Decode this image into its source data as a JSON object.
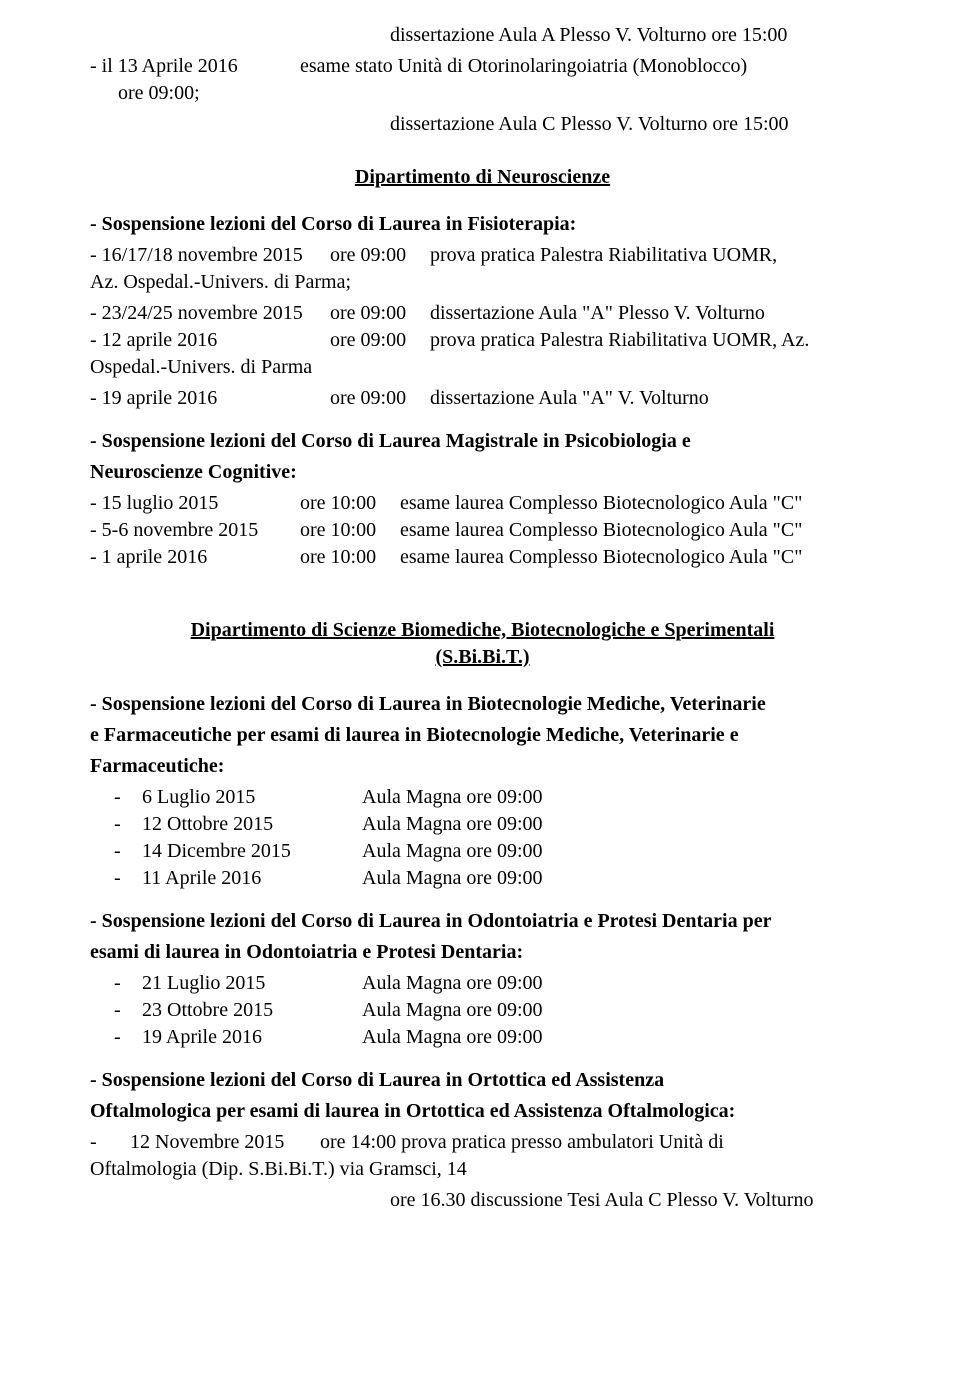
{
  "intro": {
    "line1": "dissertazione Aula A Plesso V. Volturno ore 15:00",
    "item_left": "-   il 13 Aprile 2016",
    "item_right": "esame stato Unità di Otorinolaringoiatria (Monoblocco)",
    "line3": "ore 09:00;",
    "line4": "dissertazione Aula C Plesso V. Volturno ore 15:00"
  },
  "neuro": {
    "title": "Dipartimento di Neuroscienze",
    "fisio_heading": "- Sospensione lezioni del Corso di Laurea in Fisioterapia:",
    "fisio_rows": [
      {
        "c0": "- 16/17/18 novembre 2015",
        "c1": "ore 09:00",
        "c2": "prova pratica Palestra Riabilitativa UOMR,"
      }
    ],
    "fisio_l2": "Az. Ospedal.-Univers. di Parma;",
    "fisio_rows2": [
      {
        "c0": "- 23/24/25 novembre 2015",
        "c1": "ore 09:00",
        "c2": "dissertazione Aula \"A\" Plesso V. Volturno"
      },
      {
        "c0": "- 12 aprile 2016",
        "c1": "ore 09:00",
        "c2": "prova pratica Palestra Riabilitativa UOMR, Az."
      }
    ],
    "fisio_l3": "Ospedal.-Univers. di Parma",
    "fisio_rows3": [
      {
        "c0": "- 19 aprile 2016",
        "c1": "ore 09:00",
        "c2": "dissertazione  Aula \"A\" V. Volturno"
      }
    ],
    "psico_heading_l1": "- Sospensione lezioni del Corso di Laurea Magistrale in Psicobiologia e",
    "psico_heading_l2": "Neuroscienze Cognitive:",
    "psico_rows": [
      {
        "c0": " - 15 luglio 2015",
        "c1": "ore 10:00",
        "c2": "esame laurea  Complesso Biotecnologico Aula \"C\""
      },
      {
        "c0": " - 5-6 novembre 2015",
        "c1": "ore 10:00",
        "c2": "esame laurea  Complesso Biotecnologico Aula \"C\""
      },
      {
        "c0": " - 1 aprile 2016",
        "c1": "ore 10:00",
        "c2": "esame laurea  Complesso Biotecnologico Aula \"C\""
      }
    ]
  },
  "sbibit": {
    "title_l1": "Dipartimento di Scienze Biomediche, Biotecnologiche e Sperimentali",
    "title_l2": "(S.Bi.Bi.T.)",
    "biotec_h1": "- Sospensione lezioni del Corso di Laurea in Biotecnologie Mediche, Veterinarie",
    "biotec_h2": "e Farmaceutiche per esami di laurea in Biotecnologie Mediche, Veterinarie e",
    "biotec_h3": "Farmaceutiche:",
    "biotec_rows": [
      {
        "lbl": "6 Luglio 2015",
        "val": "Aula Magna ore 09:00"
      },
      {
        "lbl": "12 Ottobre 2015",
        "val": "Aula Magna ore 09:00"
      },
      {
        "lbl": "14 Dicembre 2015",
        "val": "Aula Magna ore 09:00"
      },
      {
        "lbl": "11 Aprile 2016",
        "val": "Aula Magna ore 09:00"
      }
    ],
    "odonto_h1": "- Sospensione lezioni del Corso di Laurea in Odontoiatria e Protesi Dentaria per",
    "odonto_h2": "esami di laurea in Odontoiatria e Protesi Dentaria:",
    "odonto_rows": [
      {
        "lbl": "21 Luglio 2015",
        "val": "Aula Magna ore 09:00"
      },
      {
        "lbl": "23 Ottobre 2015",
        "val": "Aula Magna ore 09:00"
      },
      {
        "lbl": "19 Aprile 2016",
        "val": "Aula Magna ore 09:00"
      }
    ],
    "ortottica_h1": "- Sospensione lezioni del Corso di Laurea in Ortottica ed Assistenza",
    "ortottica_h2": "Oftalmologica per esami di laurea in Ortottica ed Assistenza Oftalmologica:",
    "ortottica_row": {
      "c0": "-",
      "c1": "12 Novembre 2015",
      "c2": "ore 14:00 prova pratica presso ambulatori Unità di"
    },
    "ortottica_l3": "Oftalmologia (Dip. S.Bi.Bi.T.) via Gramsci, 14",
    "ortottica_l4": "ore 16.30 discussione Tesi Aula C Plesso V. Volturno"
  }
}
